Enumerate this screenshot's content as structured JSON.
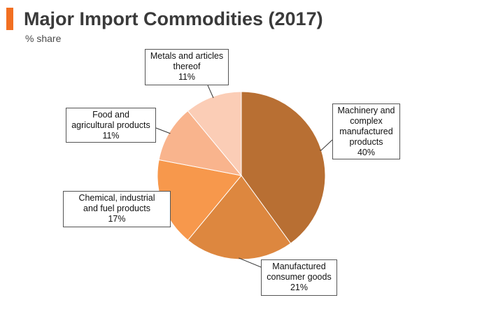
{
  "header": {
    "title": "Major Import Commodities (2017)",
    "subtitle": "% share",
    "accent_color": "#f26f21"
  },
  "chart_data": {
    "type": "pie",
    "title": "Major Import Commodities (2017)",
    "subtitle": "% share",
    "unit": "%",
    "start_direction": "12 o'clock, clockwise",
    "slices": [
      {
        "name": "Machinery and complex manufactured products",
        "label_lines": [
          "Machinery and",
          "complex",
          "manufactured",
          "products"
        ],
        "value": 40,
        "value_label": "40%",
        "color": "#b86f33"
      },
      {
        "name": "Manufactured consumer goods",
        "label_lines": [
          "Manufactured",
          "consumer goods"
        ],
        "value": 21,
        "value_label": "21%",
        "color": "#dd873f"
      },
      {
        "name": "Chemical, industrial and fuel products",
        "label_lines": [
          "Chemical, industrial",
          "and fuel products"
        ],
        "value": 17,
        "value_label": "17%",
        "color": "#f7984c"
      },
      {
        "name": "Food and agricultural products",
        "label_lines": [
          "Food and",
          "agricultural products"
        ],
        "value": 11,
        "value_label": "11%",
        "color": "#f9b48d"
      },
      {
        "name": "Metals and articles thereof",
        "label_lines": [
          "Metals and articles",
          "thereof"
        ],
        "value": 11,
        "value_label": "11%",
        "color": "#fbcdb6"
      }
    ]
  }
}
